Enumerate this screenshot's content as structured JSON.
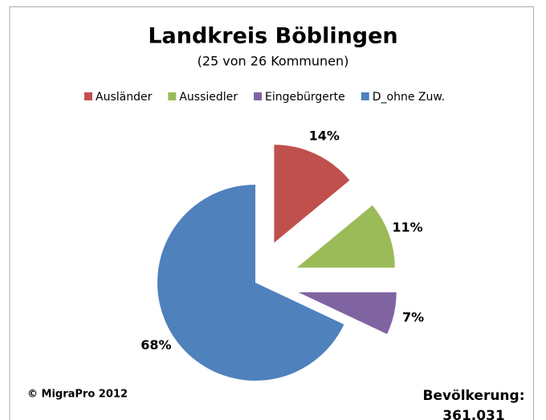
{
  "chart_data": {
    "type": "pie",
    "title": "Landkreis Böblingen",
    "subtitle": "(25 von 26 Kommunen)",
    "categories": [
      "Ausländer",
      "Aussiedler",
      "Eingebürgerte",
      "D_ohne Zuw."
    ],
    "values": [
      14,
      11,
      7,
      68
    ],
    "value_labels": [
      "14%",
      "11%",
      "7%",
      "68%"
    ],
    "colors": [
      "#c0504d",
      "#9bbb59",
      "#8064a2",
      "#4f81bd"
    ],
    "legend": "top",
    "source": "© MigraPro 2012",
    "population_label": "Bevölkerung:",
    "population": "361.031"
  }
}
